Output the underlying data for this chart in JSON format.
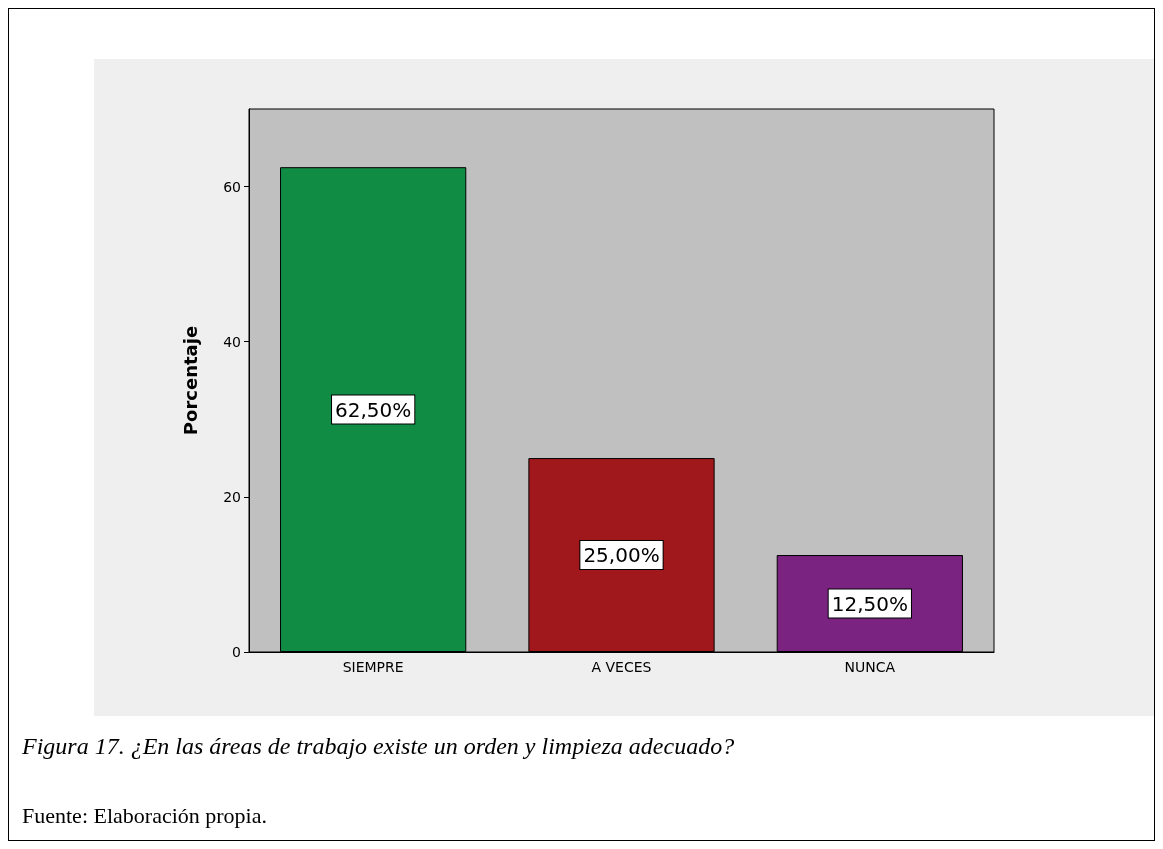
{
  "chart_data": {
    "type": "bar",
    "title": "Figura 17. ¿En las áreas de trabajo existe un orden y limpieza adecuado?",
    "ylabel": "Porcentaje",
    "categories": [
      "SIEMPRE",
      "A VECES",
      "NUNCA"
    ],
    "values": [
      62.5,
      25,
      12.5
    ],
    "colors": [
      "#118c45",
      "#a1181c",
      "#7b2380"
    ],
    "value_labels": [
      "62,50%",
      "25,00%",
      "12,50%"
    ],
    "ylim": [
      0,
      70
    ],
    "yticks": [
      0,
      20,
      40,
      60
    ],
    "grid": false,
    "annotations": [
      "Fuente: Elaboración propia."
    ]
  }
}
